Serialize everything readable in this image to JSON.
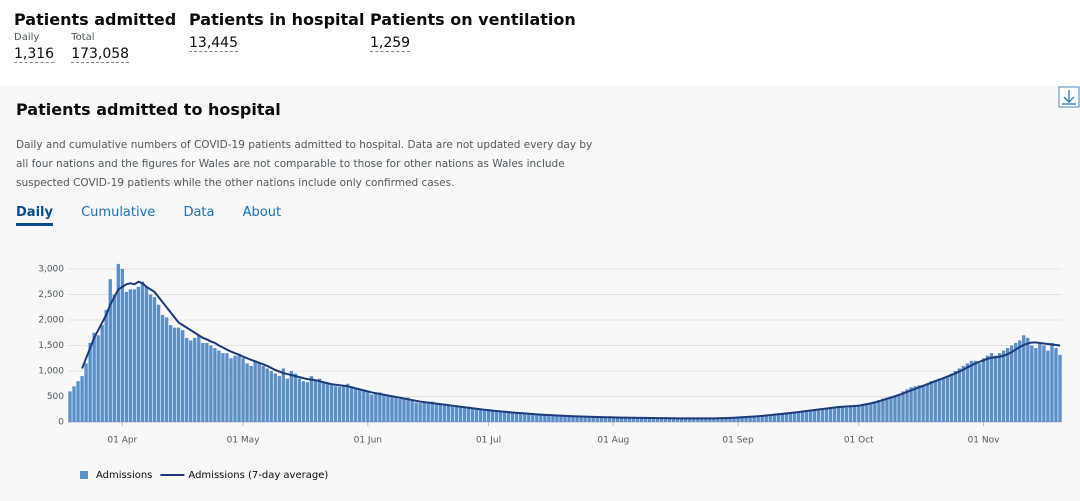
{
  "header": {
    "cards": [
      {
        "title": "Patients admitted",
        "items": [
          {
            "label": "Daily",
            "value": "1,316"
          },
          {
            "label": "Total",
            "value": "173,058"
          }
        ]
      },
      {
        "title": "Patients in hospital",
        "items": [
          {
            "value": "13,445"
          }
        ]
      },
      {
        "title": "Patients on ventilation",
        "items": [
          {
            "value": "1,259"
          }
        ]
      }
    ]
  },
  "panel": {
    "title": "Patients admitted to hospital",
    "description": [
      "Daily and cumulative numbers of COVID-19 patients admitted to hospital. Data are not updated every day by",
      "all four nations and the figures for Wales are not comparable to those for other nations as Wales include",
      "suspected COVID-19 patients while the other nations include only confirmed cases."
    ],
    "tabs": [
      "Daily",
      "Cumulative",
      "Data",
      "About"
    ]
  },
  "chart_data": {
    "type": "bar",
    "grid": true,
    "categories": [
      null,
      null,
      null,
      null,
      null,
      null,
      null,
      null,
      null,
      null,
      null,
      null,
      null,
      "01 Apr",
      null,
      null,
      null,
      null,
      null,
      null,
      null,
      null,
      null,
      null,
      null,
      null,
      null,
      null,
      null,
      null,
      null,
      null,
      null,
      null,
      null,
      null,
      null,
      null,
      null,
      null,
      null,
      null,
      null,
      "01 May",
      null,
      null,
      null,
      null,
      null,
      null,
      null,
      null,
      null,
      null,
      null,
      null,
      null,
      null,
      null,
      null,
      null,
      null,
      null,
      null,
      null,
      null,
      null,
      null,
      null,
      null,
      null,
      null,
      null,
      null,
      "01 Jun",
      null,
      null,
      null,
      null,
      null,
      null,
      null,
      null,
      null,
      null,
      null,
      null,
      null,
      null,
      null,
      null,
      null,
      null,
      null,
      null,
      null,
      null,
      null,
      null,
      null,
      null,
      null,
      null,
      null,
      "01 Jul",
      null,
      null,
      null,
      null,
      null,
      null,
      null,
      null,
      null,
      null,
      null,
      null,
      null,
      null,
      null,
      null,
      null,
      null,
      null,
      null,
      null,
      null,
      null,
      null,
      null,
      null,
      null,
      null,
      null,
      null,
      "01 Aug",
      null,
      null,
      null,
      null,
      null,
      null,
      null,
      null,
      null,
      null,
      null,
      null,
      null,
      null,
      null,
      null,
      null,
      null,
      null,
      null,
      null,
      null,
      null,
      null,
      null,
      null,
      null,
      null,
      null,
      null,
      "01 Sep",
      null,
      null,
      null,
      null,
      null,
      null,
      null,
      null,
      null,
      null,
      null,
      null,
      null,
      null,
      null,
      null,
      null,
      null,
      null,
      null,
      null,
      null,
      null,
      null,
      null,
      null,
      null,
      null,
      null,
      "01 Oct",
      null,
      null,
      null,
      null,
      null,
      null,
      null,
      null,
      null,
      null,
      null,
      null,
      null,
      null,
      null,
      null,
      null,
      null,
      null,
      null,
      null,
      null,
      null,
      null,
      null,
      null,
      null,
      null,
      null,
      null,
      "01 Nov",
      null,
      null,
      null,
      null,
      null,
      null,
      null,
      null,
      null,
      null,
      null,
      null,
      null,
      null,
      null,
      null,
      null,
      null,
      null
    ],
    "series": [
      {
        "name": "Admissions",
        "color": "#5b8fc9",
        "values": [
          600,
          700,
          800,
          900,
          1150,
          1550,
          1750,
          1700,
          1900,
          2200,
          2800,
          2500,
          3100,
          3000,
          2550,
          2600,
          2600,
          2650,
          2750,
          2650,
          2500,
          2450,
          2300,
          2100,
          2050,
          1900,
          1850,
          1850,
          1800,
          1650,
          1600,
          1650,
          1700,
          1550,
          1550,
          1500,
          1450,
          1400,
          1350,
          1350,
          1250,
          1300,
          1300,
          1250,
          1150,
          1100,
          1200,
          1150,
          1100,
          1050,
          1000,
          950,
          900,
          1050,
          850,
          1000,
          950,
          850,
          800,
          780,
          900,
          820,
          850,
          780,
          760,
          720,
          700,
          690,
          720,
          750,
          700,
          650,
          640,
          620,
          600,
          540,
          560,
          580,
          520,
          500,
          520,
          470,
          450,
          450,
          480,
          420,
          380,
          370,
          380,
          360,
          400,
          350,
          340,
          320,
          330,
          300,
          300,
          290,
          280,
          300,
          260,
          250,
          250,
          240,
          230,
          220,
          210,
          200,
          190,
          200,
          180,
          170,
          170,
          160,
          160,
          150,
          150,
          140,
          140,
          140,
          130,
          130,
          120,
          120,
          120,
          110,
          110,
          110,
          105,
          100,
          100,
          95,
          95,
          90,
          95,
          90,
          85,
          90,
          85,
          80,
          80,
          85,
          80,
          75,
          80,
          75,
          80,
          75,
          70,
          75,
          70,
          72,
          70,
          68,
          70,
          68,
          65,
          70,
          68,
          70,
          72,
          75,
          78,
          80,
          85,
          88,
          90,
          95,
          100,
          105,
          110,
          115,
          125,
          130,
          140,
          150,
          160,
          165,
          170,
          180,
          190,
          200,
          210,
          220,
          230,
          240,
          250,
          260,
          270,
          280,
          300,
          310,
          300,
          280,
          320,
          330,
          320,
          340,
          360,
          380,
          400,
          430,
          460,
          480,
          500,
          520,
          550,
          600,
          640,
          680,
          700,
          720,
          700,
          760,
          800,
          820,
          850,
          870,
          900,
          950,
          1000,
          1050,
          1100,
          1150,
          1200,
          1200,
          1150,
          1250,
          1300,
          1350,
          1300,
          1350,
          1400,
          1450,
          1500,
          1550,
          1600,
          1700,
          1650,
          1500,
          1450,
          1550,
          1500,
          1400,
          1550,
          1450,
          1316
        ]
      },
      {
        "name": "Admissions (7-day average)",
        "type": "line",
        "color": "#1d3a78",
        "values": [
          null,
          null,
          null,
          1050,
          1250,
          1450,
          1650,
          1800,
          1950,
          2100,
          2300,
          2450,
          2600,
          2650,
          2700,
          2720,
          2700,
          2750,
          2720,
          2650,
          2600,
          2550,
          2450,
          2350,
          2250,
          2150,
          2050,
          1950,
          1900,
          1850,
          1800,
          1750,
          1700,
          1650,
          1620,
          1580,
          1550,
          1500,
          1460,
          1420,
          1380,
          1350,
          1320,
          1280,
          1250,
          1220,
          1190,
          1160,
          1130,
          1100,
          1060,
          1020,
          990,
          960,
          940,
          920,
          900,
          880,
          860,
          840,
          830,
          820,
          800,
          780,
          760,
          740,
          730,
          720,
          710,
          700,
          680,
          660,
          640,
          620,
          600,
          580,
          565,
          550,
          535,
          520,
          505,
          490,
          475,
          460,
          445,
          430,
          415,
          400,
          390,
          380,
          370,
          360,
          350,
          340,
          330,
          320,
          310,
          300,
          290,
          280,
          270,
          260,
          250,
          240,
          232,
          224,
          216,
          208,
          200,
          193,
          186,
          180,
          174,
          168,
          162,
          156,
          150,
          145,
          140,
          136,
          132,
          128,
          124,
          120,
          117,
          114,
          111,
          108,
          105,
          102,
          100,
          98,
          96,
          94,
          92,
          90,
          88,
          86,
          85,
          84,
          83,
          82,
          81,
          80,
          79,
          78,
          77,
          76,
          75,
          74,
          73,
          72,
          71,
          70,
          70,
          70,
          70,
          70,
          70,
          71,
          72,
          73,
          75,
          77,
          80,
          83,
          87,
          92,
          97,
          102,
          108,
          114,
          121,
          128,
          136,
          144,
          152,
          160,
          168,
          177,
          186,
          195,
          205,
          215,
          225,
          235,
          245,
          255,
          265,
          275,
          285,
          295,
          300,
          305,
          310,
          315,
          320,
          335,
          350,
          365,
          385,
          405,
          430,
          455,
          480,
          505,
          530,
          560,
          590,
          620,
          650,
          680,
          710,
          740,
          770,
          800,
          830,
          860,
          890,
          920,
          955,
          990,
          1030,
          1070,
          1110,
          1150,
          1180,
          1210,
          1240,
          1260,
          1270,
          1280,
          1300,
          1330,
          1370,
          1420,
          1470,
          1510,
          1540,
          1560,
          1560,
          1550,
          1540,
          1530,
          1520,
          1510,
          1500
        ]
      }
    ],
    "ylim": [
      0,
      3200
    ],
    "yticks": [
      0,
      500,
      {
        "value": 1000,
        "label": "1,000"
      },
      {
        "value": 1500,
        "label": "1,500"
      },
      {
        "value": 2000,
        "label": "2,000"
      },
      {
        "value": 2500,
        "label": "2,500"
      },
      {
        "value": 3000,
        "label": "3,000"
      }
    ]
  }
}
